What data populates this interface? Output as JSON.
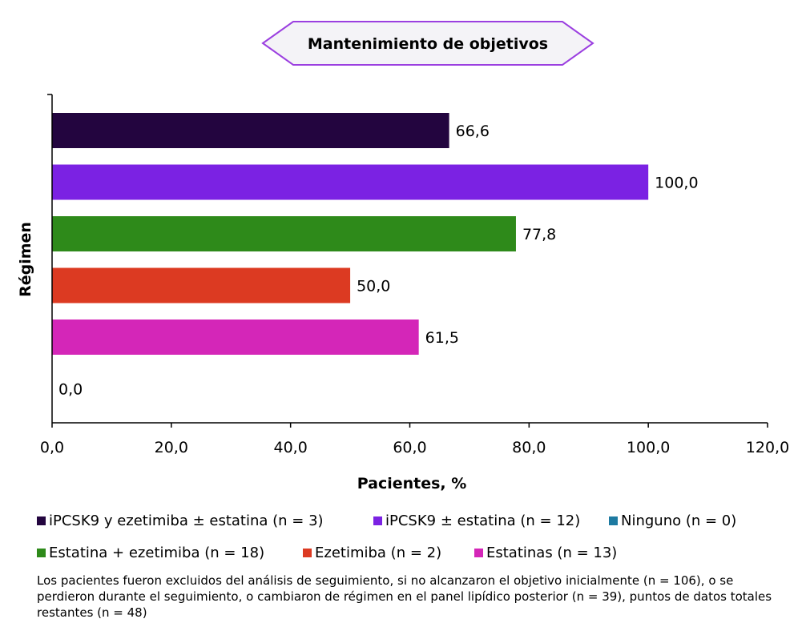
{
  "chart_data": {
    "type": "bar",
    "orientation": "horizontal",
    "title": "Mantenimiento de objetivos",
    "xlabel": "Pacientes, %",
    "ylabel": "Régimen",
    "xlim": [
      0,
      120
    ],
    "x_ticks": [
      "0,0",
      "20,0",
      "40,0",
      "60,0",
      "80,0",
      "100,0",
      "120,0"
    ],
    "grid": false,
    "categories": [
      "iPCSK9 y ezetimiba ± estatina (n = 3)",
      "iPCSK9 ± estatina (n = 12)",
      "Estatina + ezetimiba (n = 18)",
      "Ezetimiba (n = 2)",
      "Estatinas (n = 13)",
      "Ninguno (n = 0)"
    ],
    "values": [
      66.6,
      100.0,
      77.8,
      50.0,
      61.5,
      0.0
    ],
    "value_labels": [
      "66,6",
      "100,0",
      "77,8",
      "50,0",
      "61,5",
      "0,0"
    ],
    "colors": [
      "#23053f",
      "#7b22e3",
      "#2e8a1a",
      "#dc3a22",
      "#d426b8",
      "#1d7aa1"
    ],
    "legend_position": "bottom"
  },
  "legend": [
    {
      "label": "iPCSK9 y ezetimiba ± estatina (n = 3)",
      "color": "#23053f"
    },
    {
      "label": "iPCSK9 ± estatina (n = 12)",
      "color": "#7b22e3"
    },
    {
      "label": "Ninguno (n = 0)",
      "color": "#1d7aa1"
    },
    {
      "label": "Estatina + ezetimiba (n = 18)",
      "color": "#2e8a1a"
    },
    {
      "label": "Ezetimiba (n = 2)",
      "color": "#dc3a22"
    },
    {
      "label": "Estatinas (n = 13)",
      "color": "#d426b8"
    }
  ],
  "footnote": "Los pacientes fueron excluidos del análisis de seguimiento, si no alcanzaron el objetivo inicialmente (n = 106), o se perdieron durante el seguimiento, o cambiaron de régimen en el panel lipídico posterior (n = 39), puntos de datos totales restantes (n = 48)",
  "title_badge": {
    "border_color": "#9b3fe0",
    "fill": "#f4f3f7"
  }
}
